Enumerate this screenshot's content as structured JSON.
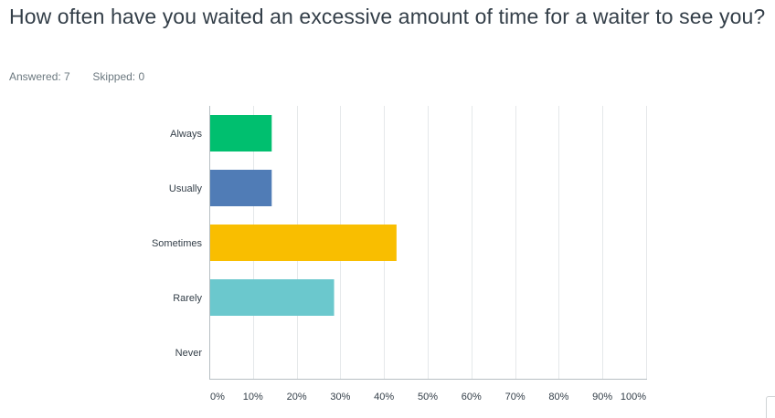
{
  "question": {
    "title": "How often have you waited an excessive amount of time for a waiter to see you?"
  },
  "stats": {
    "answered_label": "Answered:",
    "answered": "7",
    "skipped_label": "Skipped:",
    "skipped": "0"
  },
  "chart_data": {
    "type": "bar",
    "orientation": "horizontal",
    "categories": [
      "Always",
      "Usually",
      "Sometimes",
      "Rarely",
      "Never"
    ],
    "values": [
      14.29,
      14.29,
      42.86,
      28.57,
      0
    ],
    "colors": [
      "#00bf6f",
      "#507cb6",
      "#f9be00",
      "#6bc8cd",
      "#ff8b4f"
    ],
    "x_ticks": [
      "0%",
      "10%",
      "20%",
      "30%",
      "40%",
      "50%",
      "60%",
      "70%",
      "80%",
      "90%",
      "100%"
    ],
    "xlim": [
      0,
      100
    ],
    "grid": true,
    "gridline_color": "#e5e8ea",
    "axis_color": "#b7bfc3"
  }
}
